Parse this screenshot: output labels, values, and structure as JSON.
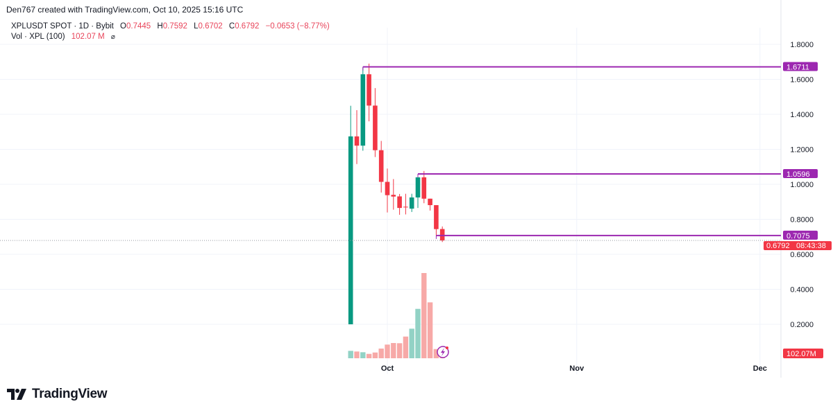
{
  "header": {
    "credit": "Den767 created with TradingView.com, Oct 10, 2025 15:16 UTC",
    "symbol": "XPLUSDT SPOT · 1D · Bybit",
    "o_label": "O",
    "o": "0.7445",
    "h_label": "H",
    "h": "0.7592",
    "l_label": "L",
    "l": "0.6702",
    "c_label": "C",
    "c": "0.6792",
    "change": "−0.0653 (−8.77%)",
    "vol_label": "Vol · XPL (100)",
    "vol_value": "102.07 M",
    "vol_icon": "hidden-eye-icon"
  },
  "logo": {
    "text": "TradingView"
  },
  "colors": {
    "up": "#089981",
    "down": "#f23645",
    "vol_up": "#92d2c5",
    "vol_down": "#f7a9a7",
    "level": "#9c27b0",
    "last": "#f23645"
  },
  "chart_data": {
    "type": "candlestick",
    "y_ticks": [
      "1.8000",
      "1.6000",
      "1.4000",
      "1.2000",
      "1.0000",
      "0.8000",
      "0.6000",
      "0.4000",
      "0.2000"
    ],
    "ylim": [
      0.2,
      1.8
    ],
    "x_ticks": [
      "Oct",
      "Nov",
      "Dec"
    ],
    "grid": true,
    "dates": [
      "2025-09-25",
      "2025-09-26",
      "2025-09-27",
      "2025-09-28",
      "2025-09-29",
      "2025-09-30",
      "2025-10-01",
      "2025-10-02",
      "2025-10-03",
      "2025-10-04",
      "2025-10-05",
      "2025-10-06",
      "2025-10-07",
      "2025-10-08",
      "2025-10-09",
      "2025-10-10"
    ],
    "open": [
      0.2,
      1.274,
      1.221,
      1.629,
      1.45,
      1.195,
      1.014,
      0.94,
      0.931,
      0.872,
      0.861,
      0.925,
      1.04,
      0.918,
      0.881,
      0.7445
    ],
    "high": [
      1.449,
      1.424,
      1.671,
      1.69,
      1.55,
      1.248,
      1.09,
      1.03,
      0.945,
      0.946,
      0.946,
      1.059,
      1.076,
      0.918,
      0.881,
      0.7592
    ],
    "low": [
      0.2,
      1.116,
      1.192,
      1.36,
      1.156,
      0.953,
      0.839,
      0.855,
      0.826,
      0.828,
      0.842,
      0.865,
      0.892,
      0.85,
      0.7075,
      0.6702
    ],
    "close": [
      1.274,
      1.221,
      1.629,
      1.45,
      1.195,
      1.014,
      0.938,
      0.93,
      0.865,
      0.868,
      0.925,
      1.04,
      0.918,
      0.881,
      0.744,
      0.6792
    ],
    "volume_m": [
      156,
      142,
      127,
      92,
      121,
      204,
      288,
      321,
      317,
      457,
      623,
      1041,
      1796,
      1178,
      194,
      102.07
    ],
    "levels": [
      {
        "value": 1.6711,
        "label": "1.6711",
        "from": "2025-09-27"
      },
      {
        "value": 1.0596,
        "label": "1.0596",
        "from": "2025-10-06"
      },
      {
        "value": 0.7075,
        "label": "0.7075",
        "from": "2025-10-09"
      }
    ],
    "last_price": {
      "value": 0.6792,
      "label": "0.6792",
      "countdown": "08:43:38"
    },
    "last_volume": {
      "label": "102.07M"
    }
  }
}
